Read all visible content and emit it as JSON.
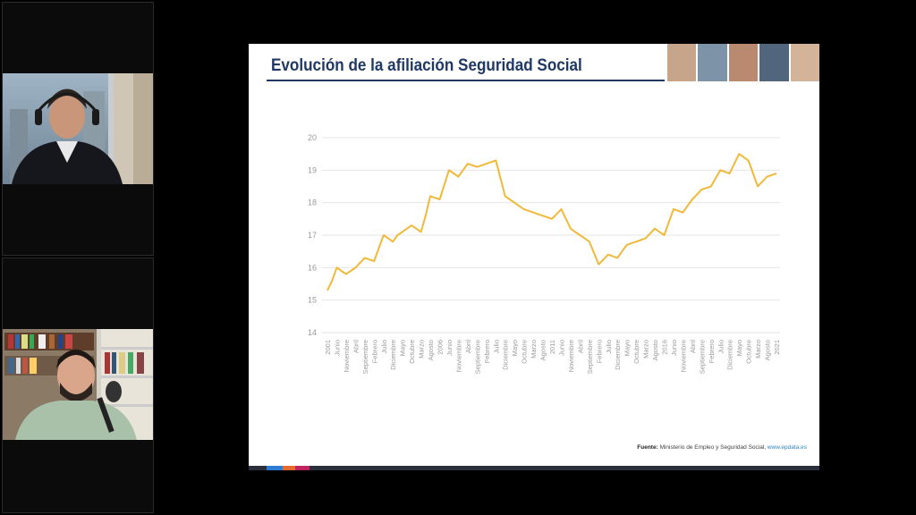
{
  "slide": {
    "title": "Evolución de la afiliación Seguridad Social",
    "source_label": "Fuente:",
    "source_text": "Ministerio de Empleo y Seguridad Social,",
    "source_url": "www.epdata.es"
  },
  "participants": [
    {
      "tile": "participant-1"
    },
    {
      "tile": "participant-2"
    }
  ],
  "colors": {
    "line": "#f0b93a",
    "title": "#1f3864",
    "grid": "#e6e6e6",
    "tick": "#999999"
  },
  "chart_data": {
    "type": "line",
    "title": "",
    "xlabel": "",
    "ylabel": "",
    "ylim": [
      14,
      20
    ],
    "yticks": [
      14,
      15,
      16,
      17,
      18,
      19,
      20
    ],
    "grid": true,
    "categories": [
      "2001",
      "Junio",
      "Noviembre",
      "Abril",
      "Septiembre",
      "Febrero",
      "Julio",
      "Diciembre",
      "Mayo",
      "Octubre",
      "Marzo",
      "Agosto",
      "2006",
      "Junio",
      "Noviembre",
      "Abril",
      "Septiembre",
      "Febrero",
      "Julio",
      "Diciembre",
      "Mayo",
      "Octubre",
      "Marzo",
      "Agosto",
      "2011",
      "Junio",
      "Noviembre",
      "Abril",
      "Septiembre",
      "Febrero",
      "Julio",
      "Diciembre",
      "Mayo",
      "Octubre",
      "Marzo",
      "Agosto",
      "2016",
      "Junio",
      "Noviembre",
      "Abril",
      "Septiembre",
      "Febrero",
      "Julio",
      "Diciembre",
      "Mayo",
      "Octubre",
      "Marzo",
      "Agosto",
      "2021"
    ],
    "x_positions": [
      0,
      1,
      2,
      3,
      4,
      5,
      6,
      7,
      8,
      9,
      10,
      11,
      12,
      13,
      14,
      15,
      16,
      17,
      18,
      19,
      20,
      21,
      22,
      23,
      24,
      25,
      26,
      27,
      28,
      29,
      30,
      31,
      32,
      33,
      34,
      35,
      36,
      37,
      38,
      39,
      40,
      41,
      42,
      43,
      44,
      45,
      46,
      47,
      48
    ],
    "series": [
      {
        "x": [
          0,
          0.5,
          1,
          1.5,
          2,
          2.5,
          3,
          3.5,
          4,
          4.5,
          5,
          5.5,
          6,
          6.5,
          7,
          7.5,
          8,
          8.5,
          9,
          9.5,
          10,
          10.5,
          11,
          11.5,
          12,
          12.5,
          13,
          13.5,
          14,
          14.5,
          15,
          15.5,
          16,
          16.5,
          17,
          17.5,
          18,
          18.5,
          19,
          19.5,
          20,
          20.5,
          21,
          21.5,
          22,
          22.5,
          23,
          23.5,
          24,
          24.5,
          25,
          25.5,
          26,
          26.5,
          27,
          27.5,
          28,
          28.5,
          29,
          29.5,
          30,
          30.5,
          31,
          31.5,
          32,
          32.5,
          33,
          33.5,
          34,
          34.5,
          35,
          35.5,
          36,
          36.5,
          37,
          37.5,
          38,
          38.5,
          39,
          39.5,
          40,
          40.5,
          41,
          41.5,
          42,
          42.5,
          43,
          43.5,
          44,
          44.5,
          45,
          45.5,
          46,
          46.5,
          47,
          47.5,
          48
        ],
        "values": [
          15.3,
          15.6,
          16.0,
          15.9,
          15.8,
          15.9,
          16.0,
          16.15,
          16.3,
          16.25,
          16.2,
          16.6,
          17.0,
          16.9,
          16.8,
          17.0,
          17.1,
          17.2,
          17.3,
          17.2,
          17.1,
          17.6,
          18.2,
          18.15,
          18.1,
          18.55,
          19.0,
          18.9,
          18.8,
          19.0,
          19.2,
          19.15,
          19.1,
          19.15,
          19.2,
          19.25,
          19.3,
          18.75,
          18.2,
          18.1,
          18.0,
          17.9,
          17.8,
          17.75,
          17.7,
          17.65,
          17.6,
          17.55,
          17.5,
          17.65,
          17.8,
          17.5,
          17.2,
          17.1,
          17.0,
          16.9,
          16.8,
          16.45,
          16.1,
          16.25,
          16.4,
          16.35,
          16.3,
          16.5,
          16.7,
          16.75,
          16.8,
          16.85,
          16.9,
          17.05,
          17.2,
          17.1,
          17.0,
          17.4,
          17.8,
          17.75,
          17.7,
          17.9,
          18.1,
          18.25,
          18.4,
          18.45,
          18.5,
          18.75,
          19.0,
          18.95,
          18.9,
          19.2,
          19.5,
          19.4,
          19.3,
          18.9,
          18.5,
          18.65,
          18.8,
          18.85,
          18.9
        ]
      }
    ]
  }
}
